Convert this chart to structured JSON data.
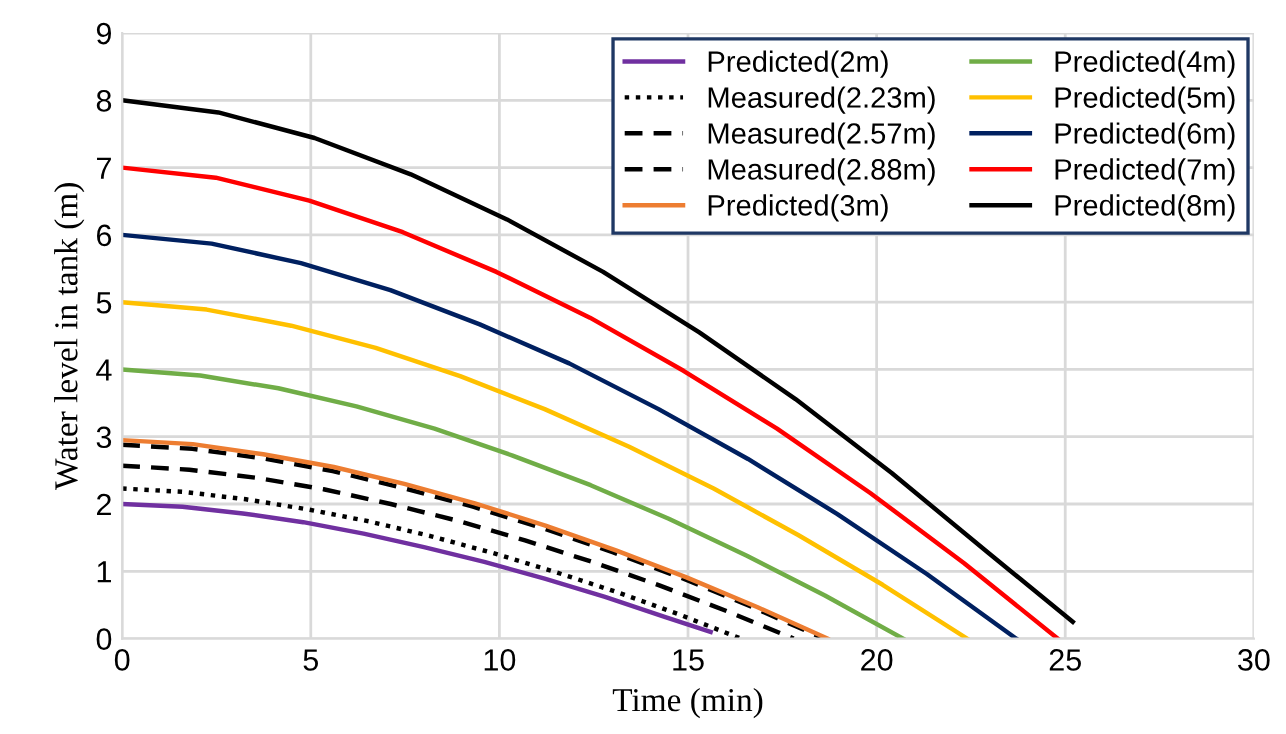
{
  "chart_data": {
    "type": "line",
    "xlabel": "Time (min)",
    "ylabel": "Water level in tank (m)",
    "xlim": [
      0,
      30
    ],
    "xticks": [
      0,
      5,
      10,
      15,
      20,
      25,
      30
    ],
    "ylim": [
      0,
      9
    ],
    "yticks": [
      0,
      1,
      2,
      3,
      4,
      5,
      6,
      7,
      8,
      9
    ],
    "grid": true,
    "legend": "top right",
    "marker": "none",
    "series": [
      {
        "name": "Predicted(2m)",
        "color": "#7030a0",
        "line_style": "solid",
        "x": [
          0,
          1.6,
          3.2,
          4.8,
          6.4,
          8,
          9.6,
          11.2,
          12.8,
          14.4,
          15.6
        ],
        "values": [
          2,
          1.96,
          1.86,
          1.73,
          1.56,
          1.36,
          1.14,
          0.89,
          0.62,
          0.32,
          0.1
        ]
      },
      {
        "name": "Measured(2.23m)",
        "color": "#000000",
        "line_style": "dotted",
        "x": [
          0,
          1.64,
          3.28,
          4.92,
          6.56,
          8.2,
          9.84,
          11.48,
          13.12,
          14.76,
          16.4
        ],
        "values": [
          2.23,
          2.18,
          2.07,
          1.92,
          1.74,
          1.52,
          1.27,
          0.99,
          0.69,
          0.36,
          0
        ]
      },
      {
        "name": "Measured(2.57m)",
        "color": "#000000",
        "line_style": "dashed",
        "x": [
          0,
          1.78,
          3.56,
          5.34,
          7.12,
          8.9,
          10.68,
          12.46,
          14.24,
          16.02,
          17.8
        ],
        "values": [
          2.57,
          2.51,
          2.39,
          2.22,
          2.0,
          1.75,
          1.46,
          1.14,
          0.79,
          0.41,
          0
        ]
      },
      {
        "name": "Measured(2.88m)",
        "color": "#000000",
        "line_style": "dashed",
        "x": [
          0,
          1.86,
          3.72,
          5.58,
          7.44,
          9.3,
          11.16,
          13.02,
          14.88,
          16.74,
          18.6
        ],
        "values": [
          2.88,
          2.82,
          2.68,
          2.49,
          2.24,
          1.96,
          1.64,
          1.28,
          0.89,
          0.46,
          0
        ]
      },
      {
        "name": "Predicted(3m)",
        "color": "#ed7d31",
        "line_style": "solid",
        "x": [
          0,
          1.87,
          3.74,
          5.61,
          7.48,
          9.35,
          11.22,
          13.09,
          14.96,
          16.83,
          18.7
        ],
        "values": [
          2.95,
          2.89,
          2.74,
          2.55,
          2.3,
          2.01,
          1.68,
          1.31,
          0.91,
          0.47,
          0
        ]
      },
      {
        "name": "Predicted(4m)",
        "color": "#70ad47",
        "line_style": "solid",
        "x": [
          0,
          2.07,
          4.14,
          6.21,
          8.28,
          10.35,
          12.42,
          14.49,
          16.56,
          18.63,
          20.7
        ],
        "values": [
          4,
          3.91,
          3.72,
          3.45,
          3.12,
          2.72,
          2.28,
          1.78,
          1.23,
          0.64,
          0
        ]
      },
      {
        "name": "Predicted(5m)",
        "color": "#ffc000",
        "line_style": "solid",
        "x": [
          0,
          2.24,
          4.48,
          6.72,
          8.96,
          11.2,
          13.44,
          15.68,
          17.92,
          20.16,
          22.4
        ],
        "values": [
          5,
          4.89,
          4.65,
          4.32,
          3.9,
          3.41,
          2.85,
          2.23,
          1.54,
          0.8,
          0
        ]
      },
      {
        "name": "Predicted(6m)",
        "color": "#002060",
        "line_style": "solid",
        "x": [
          0,
          2.37,
          4.74,
          7.11,
          9.48,
          11.85,
          14.22,
          16.59,
          18.96,
          21.33,
          23.7
        ],
        "values": [
          6,
          5.87,
          5.58,
          5.18,
          4.67,
          4.09,
          3.41,
          2.67,
          1.85,
          0.96,
          0
        ]
      },
      {
        "name": "Predicted(7m)",
        "color": "#ff0000",
        "line_style": "solid",
        "x": [
          0,
          2.48,
          4.96,
          7.44,
          9.92,
          12.4,
          14.88,
          17.36,
          19.84,
          22.32,
          24.8
        ],
        "values": [
          7,
          6.85,
          6.51,
          6.04,
          5.45,
          4.77,
          3.98,
          3.12,
          2.16,
          1.12,
          0
        ]
      },
      {
        "name": "Predicted(8m)",
        "color": "#000000",
        "line_style": "solid",
        "x": [
          0,
          2.55,
          5.1,
          7.65,
          10.2,
          12.75,
          15.3,
          17.85,
          20.4,
          22.95,
          25.2
        ],
        "values": [
          8,
          7.82,
          7.44,
          6.9,
          6.23,
          5.45,
          4.55,
          3.56,
          2.46,
          1.28,
          0.25
        ]
      }
    ]
  }
}
